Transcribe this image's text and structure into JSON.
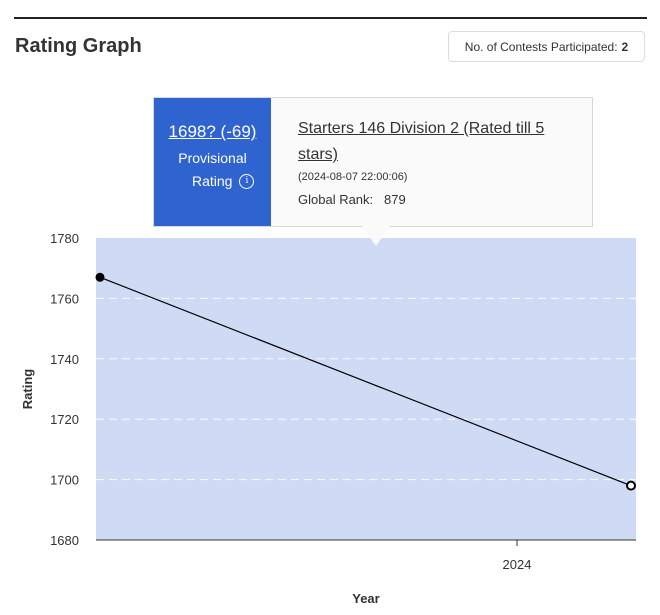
{
  "header": {
    "title": "Rating Graph",
    "contests_label": "No. of Contests Participated:",
    "contests_count": "2"
  },
  "tooltip": {
    "rating_change": "1698? (-69)",
    "status_line1": "Provisional",
    "status_line2": "Rating",
    "contest_name": "Starters 146 Division 2 (Rated till 5 stars)",
    "date": "(2024-08-07 22:00:06)",
    "rank_label": "Global Rank:",
    "rank_value": "879"
  },
  "colors": {
    "plot_background": "#cfdaf5",
    "tooltip_accent": "#2f63d0",
    "line": "#000000"
  },
  "chart_data": {
    "type": "line",
    "xlabel": "Year",
    "ylabel": "Rating",
    "ylim": [
      1680,
      1780
    ],
    "yticks": [
      1680,
      1700,
      1720,
      1740,
      1760,
      1780
    ],
    "xticks": [
      "2024"
    ],
    "grid": true,
    "series": [
      {
        "points": [
          {
            "y": 1767,
            "marker": "filled"
          },
          {
            "y": 1698,
            "marker": "hollow"
          }
        ]
      }
    ]
  }
}
